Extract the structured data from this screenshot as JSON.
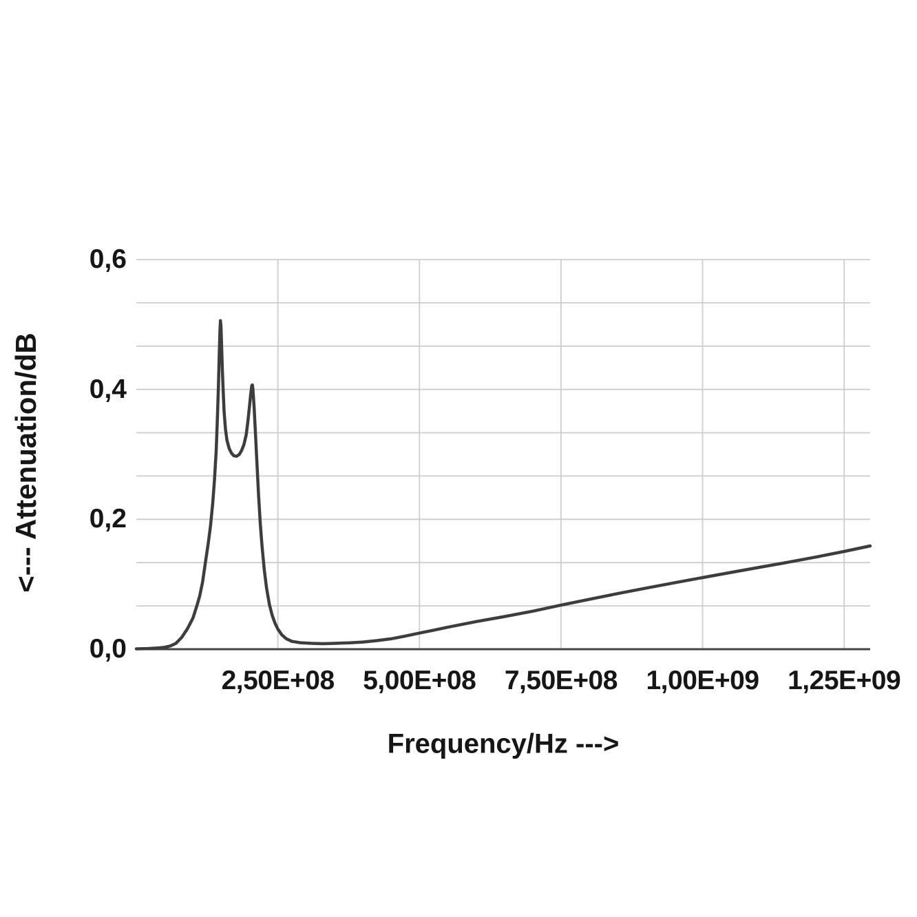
{
  "page": {
    "background": "#ffffff"
  },
  "chart_data": {
    "type": "line",
    "title": "",
    "xlabel": "Frequency/Hz --->",
    "ylabel": "<--- Attenuation/dB",
    "xlim": [
      0,
      1296000000
    ],
    "ylim": [
      0,
      0.6
    ],
    "grid": "on",
    "legend_position": "none",
    "decimal_separator": ",",
    "x_ticks": [
      {
        "value": 250000000,
        "label": "2,50E+08"
      },
      {
        "value": 500000000,
        "label": "5,00E+08"
      },
      {
        "value": 750000000,
        "label": "7,50E+08"
      },
      {
        "value": 1000000000,
        "label": "1,00E+09"
      },
      {
        "value": 1250000000,
        "label": "1,25E+09"
      }
    ],
    "y_ticks": [
      {
        "value": 0.0,
        "label": "0,0"
      },
      {
        "value": 0.2,
        "label": "0,2"
      },
      {
        "value": 0.4,
        "label": "0,4"
      },
      {
        "value": 0.6,
        "label": "0,6"
      }
    ],
    "y_minor_divisions": 9,
    "colors": {
      "curve": "#3d3d3d",
      "grid": "#cdcdcd",
      "axis": "#444444",
      "text": "#161616",
      "background": "#ffffff"
    },
    "series": [
      {
        "name": "attenuation",
        "points": [
          [
            0,
            0.0005
          ],
          [
            20000000,
            0.001
          ],
          [
            40000000,
            0.002
          ],
          [
            50000000,
            0.003
          ],
          [
            60000000,
            0.005
          ],
          [
            70000000,
            0.009
          ],
          [
            80000000,
            0.018
          ],
          [
            90000000,
            0.031
          ],
          [
            100000000,
            0.048
          ],
          [
            107000000,
            0.067
          ],
          [
            112000000,
            0.082
          ],
          [
            117000000,
            0.103
          ],
          [
            122000000,
            0.133
          ],
          [
            127000000,
            0.163
          ],
          [
            131000000,
            0.19
          ],
          [
            135000000,
            0.225
          ],
          [
            138000000,
            0.26
          ],
          [
            141000000,
            0.305
          ],
          [
            143000000,
            0.35
          ],
          [
            145000000,
            0.405
          ],
          [
            146500000,
            0.455
          ],
          [
            147700000,
            0.49
          ],
          [
            148600000,
            0.506
          ],
          [
            149500000,
            0.497
          ],
          [
            150500000,
            0.47
          ],
          [
            152000000,
            0.43
          ],
          [
            153500000,
            0.395
          ],
          [
            155000000,
            0.366
          ],
          [
            157500000,
            0.339
          ],
          [
            160000000,
            0.322
          ],
          [
            164000000,
            0.309
          ],
          [
            168000000,
            0.302
          ],
          [
            172000000,
            0.298
          ],
          [
            177000000,
            0.297
          ],
          [
            182000000,
            0.3
          ],
          [
            186000000,
            0.306
          ],
          [
            190000000,
            0.315
          ],
          [
            194000000,
            0.33
          ],
          [
            197000000,
            0.35
          ],
          [
            200000000,
            0.375
          ],
          [
            202000000,
            0.393
          ],
          [
            204000000,
            0.406
          ],
          [
            205000000,
            0.407
          ],
          [
            206000000,
            0.4
          ],
          [
            208000000,
            0.373
          ],
          [
            210000000,
            0.34
          ],
          [
            213000000,
            0.287
          ],
          [
            216000000,
            0.235
          ],
          [
            219000000,
            0.193
          ],
          [
            222000000,
            0.159
          ],
          [
            226000000,
            0.122
          ],
          [
            230000000,
            0.094
          ],
          [
            235000000,
            0.069
          ],
          [
            240000000,
            0.052
          ],
          [
            245000000,
            0.04
          ],
          [
            250000000,
            0.031
          ],
          [
            257000000,
            0.022
          ],
          [
            265000000,
            0.016
          ],
          [
            275000000,
            0.012
          ],
          [
            290000000,
            0.01
          ],
          [
            310000000,
            0.009
          ],
          [
            330000000,
            0.0085
          ],
          [
            350000000,
            0.009
          ],
          [
            375000000,
            0.0098
          ],
          [
            400000000,
            0.011
          ],
          [
            425000000,
            0.0133
          ],
          [
            450000000,
            0.016
          ],
          [
            475000000,
            0.0202
          ],
          [
            500000000,
            0.0248
          ],
          [
            525000000,
            0.0293
          ],
          [
            550000000,
            0.0338
          ],
          [
            600000000,
            0.0425
          ],
          [
            650000000,
            0.0502
          ],
          [
            700000000,
            0.0585
          ],
          [
            750000000,
            0.068
          ],
          [
            800000000,
            0.0768
          ],
          [
            850000000,
            0.0857
          ],
          [
            900000000,
            0.094
          ],
          [
            950000000,
            0.1022
          ],
          [
            1000000000,
            0.1103
          ],
          [
            1050000000,
            0.1182
          ],
          [
            1100000000,
            0.126
          ],
          [
            1150000000,
            0.1338
          ],
          [
            1200000000,
            0.1418
          ],
          [
            1250000000,
            0.1505
          ],
          [
            1296000000,
            0.159
          ]
        ]
      }
    ]
  }
}
